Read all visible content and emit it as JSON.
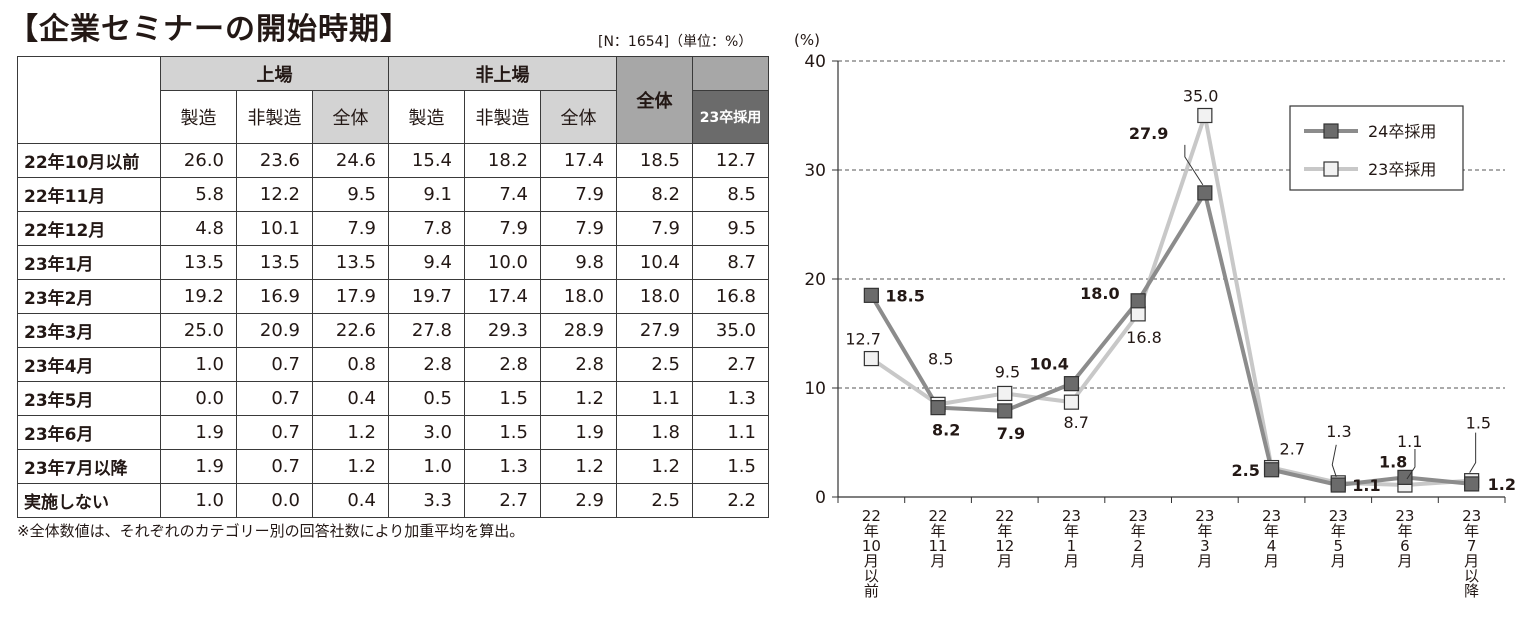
{
  "title": "【企業セミナーの開始時期】",
  "meta": "[N：1654]（単位：%）",
  "table": {
    "group_listed": "上場",
    "group_unlisted": "非上場",
    "col_total": "全体",
    "col_23": "23卒採用",
    "sub_mfg": "製造",
    "sub_nonmfg": "非製造",
    "sub_total": "全体",
    "rows": [
      {
        "label": "22年10月以前",
        "v": [
          "26.0",
          "23.6",
          "24.6",
          "15.4",
          "18.2",
          "17.4",
          "18.5",
          "12.7"
        ]
      },
      {
        "label": "22年11月",
        "v": [
          "5.8",
          "12.2",
          "9.5",
          "9.1",
          "7.4",
          "7.9",
          "8.2",
          "8.5"
        ]
      },
      {
        "label": "22年12月",
        "v": [
          "4.8",
          "10.1",
          "7.9",
          "7.8",
          "7.9",
          "7.9",
          "7.9",
          "9.5"
        ]
      },
      {
        "label": "23年1月",
        "v": [
          "13.5",
          "13.5",
          "13.5",
          "9.4",
          "10.0",
          "9.8",
          "10.4",
          "8.7"
        ]
      },
      {
        "label": "23年2月",
        "v": [
          "19.2",
          "16.9",
          "17.9",
          "19.7",
          "17.4",
          "18.0",
          "18.0",
          "16.8"
        ]
      },
      {
        "label": "23年3月",
        "v": [
          "25.0",
          "20.9",
          "22.6",
          "27.8",
          "29.3",
          "28.9",
          "27.9",
          "35.0"
        ]
      },
      {
        "label": "23年4月",
        "v": [
          "1.0",
          "0.7",
          "0.8",
          "2.8",
          "2.8",
          "2.8",
          "2.5",
          "2.7"
        ]
      },
      {
        "label": "23年5月",
        "v": [
          "0.0",
          "0.7",
          "0.4",
          "0.5",
          "1.5",
          "1.2",
          "1.1",
          "1.3"
        ]
      },
      {
        "label": "23年6月",
        "v": [
          "1.9",
          "0.7",
          "1.2",
          "3.0",
          "1.5",
          "1.9",
          "1.8",
          "1.1"
        ]
      },
      {
        "label": "23年7月以降",
        "v": [
          "1.9",
          "0.7",
          "1.2",
          "1.0",
          "1.3",
          "1.2",
          "1.2",
          "1.5"
        ]
      },
      {
        "label": "実施しない",
        "v": [
          "1.0",
          "0.0",
          "0.4",
          "3.3",
          "2.7",
          "2.9",
          "2.5",
          "2.2"
        ]
      }
    ]
  },
  "note": "※全体数値は、それぞれのカテゴリー別の回答社数により加重平均を算出。",
  "chart_data": {
    "type": "line",
    "ylabel": "(%)",
    "ylim": [
      0,
      40
    ],
    "yticks": [
      "0",
      "10",
      "20",
      "30",
      "40"
    ],
    "grid": "dashed horizontal",
    "legend_position": "top-right",
    "categories": [
      "22年10月以前",
      "22年11月",
      "22年12月",
      "23年1月",
      "23年2月",
      "23年3月",
      "23年4月",
      "23年5月",
      "23年6月",
      "23年7月以降"
    ],
    "category_labels": [
      "22年10月以前",
      "22年11月",
      "22年12月",
      "23年1月",
      "23年2月",
      "23年3月",
      "23年4月",
      "23年5月",
      "23年6月",
      "23年7月以降"
    ],
    "series": [
      {
        "name": "24卒採用",
        "color": "#6b6b6b",
        "line": "#8c8c8c",
        "values": [
          18.5,
          8.2,
          7.9,
          10.4,
          18.0,
          27.9,
          2.5,
          1.1,
          1.8,
          1.2
        ],
        "labels": [
          "18.5",
          "8.2",
          "7.9",
          "10.4",
          "18.0",
          "27.9",
          "2.5",
          "1.1",
          "1.8",
          "1.2"
        ]
      },
      {
        "name": "23卒採用",
        "color": "#f2f2f2",
        "line": "#c8c8c8",
        "values": [
          12.7,
          8.5,
          9.5,
          8.7,
          16.8,
          35.0,
          2.7,
          1.3,
          1.1,
          1.5
        ],
        "labels": [
          "12.7",
          "8.5",
          "9.5",
          "8.7",
          "16.8",
          "35.0",
          "2.7",
          "1.3",
          "1.1",
          "1.5"
        ]
      }
    ]
  }
}
